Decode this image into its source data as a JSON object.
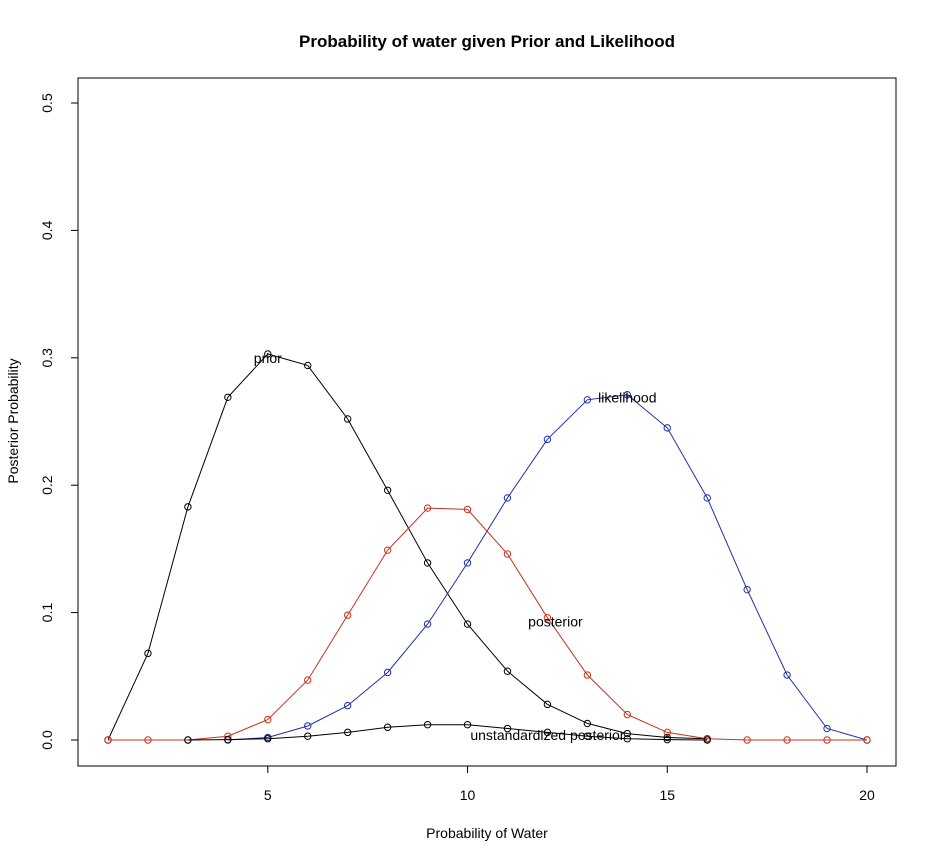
{
  "chart_data": {
    "type": "line",
    "title": "Probability of water given Prior and Likelihood",
    "xlabel": "Probability of Water",
    "ylabel": "Posterior Probability",
    "xlim": [
      1,
      20
    ],
    "ylim": [
      0,
      0.5
    ],
    "x_ticks": [
      5,
      10,
      15,
      20
    ],
    "y_ticks": [
      0.0,
      0.1,
      0.2,
      0.3,
      0.4,
      0.5
    ],
    "x_tick_labels": [
      "5",
      "10",
      "15",
      "20"
    ],
    "y_tick_labels": [
      "0.0",
      "0.1",
      "0.2",
      "0.3",
      "0.4",
      "0.5"
    ],
    "grid": false,
    "legend": "none",
    "series": [
      {
        "color": "#000000",
        "x": [
          1,
          2,
          3,
          4,
          5,
          6,
          7,
          8,
          9,
          10,
          11,
          12,
          13,
          14,
          15,
          16
        ],
        "values": [
          0.0,
          0.068,
          0.183,
          0.269,
          0.303,
          0.294,
          0.252,
          0.196,
          0.139,
          0.091,
          0.054,
          0.028,
          0.013,
          0.005,
          0.002,
          0.001
        ]
      },
      {
        "color": "#1f2fa8",
        "x": [
          4,
          5,
          6,
          7,
          8,
          9,
          10,
          11,
          12,
          13,
          14,
          15,
          16,
          17,
          18,
          19,
          20
        ],
        "values": [
          0.0,
          0.002,
          0.011,
          0.027,
          0.053,
          0.091,
          0.139,
          0.19,
          0.236,
          0.267,
          0.271,
          0.245,
          0.19,
          0.118,
          0.051,
          0.009,
          0.0
        ]
      },
      {
        "color": "#c8321e",
        "x": [
          1,
          2,
          3,
          4,
          5,
          6,
          7,
          8,
          9,
          10,
          11,
          12,
          13,
          14,
          15,
          16,
          17,
          18,
          19,
          20
        ],
        "values": [
          0.0,
          0.0,
          0.0,
          0.003,
          0.016,
          0.047,
          0.098,
          0.149,
          0.182,
          0.181,
          0.146,
          0.096,
          0.051,
          0.02,
          0.006,
          0.001,
          0.0,
          0.0,
          0.0,
          0.0
        ]
      },
      {
        "color": "#000000",
        "x": [
          3,
          4,
          5,
          6,
          7,
          8,
          9,
          10,
          11,
          12,
          13,
          14,
          15,
          16
        ],
        "values": [
          0.0,
          0.0003,
          0.001,
          0.003,
          0.006,
          0.01,
          0.012,
          0.012,
          0.009,
          0.006,
          0.003,
          0.001,
          0.0003,
          0.0
        ]
      }
    ],
    "annotations": [
      {
        "text": "prior",
        "x": 5.0,
        "y": 0.3
      },
      {
        "text": "likelihood",
        "x": 14.0,
        "y": 0.269
      },
      {
        "text": "posterior",
        "x": 12.2,
        "y": 0.093
      },
      {
        "text": "unstandardized posterior",
        "x": 12.0,
        "y": 0.004
      }
    ]
  }
}
